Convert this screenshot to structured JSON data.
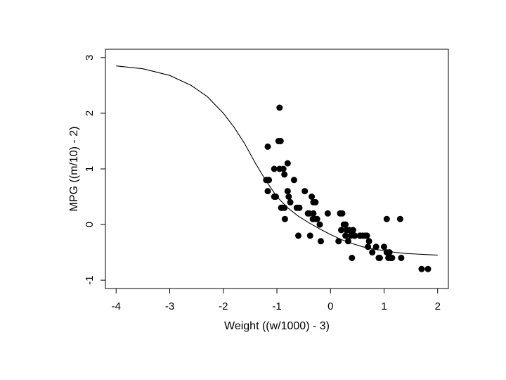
{
  "chart_data": {
    "type": "scatter",
    "title": "",
    "xlabel": "Weight ((w/1000) - 3)",
    "ylabel": "MPG ((m/10) - 2)",
    "xlim": [
      -4.2,
      2.2
    ],
    "ylim": [
      -1.15,
      3.15
    ],
    "xticks": [
      -4,
      -3,
      -2,
      -1,
      0,
      1,
      2
    ],
    "yticks": [
      -1,
      0,
      1,
      2,
      3
    ],
    "xtick_labels": [
      "-4",
      "-3",
      "-2",
      "-1",
      "0",
      "1",
      "2"
    ],
    "ytick_labels": [
      "-1",
      "0",
      "1",
      "2",
      "3"
    ],
    "grid": false,
    "legend": "none",
    "series": [
      {
        "kind": "points",
        "color": "#000000",
        "x": [
          -0.95,
          -0.97,
          -0.93,
          -1.17,
          -1.2,
          -1.17,
          -1.05,
          -0.95,
          -0.88,
          -0.86,
          -0.8,
          -1.15,
          -1.05,
          -1.02,
          -0.8,
          -0.78,
          -0.75,
          -0.9,
          -0.92,
          -0.86,
          -0.85,
          -0.68,
          -0.63,
          -0.6,
          -0.48,
          -0.42,
          -0.35,
          -0.32,
          -0.28,
          -0.25,
          -0.4,
          -0.33,
          -0.38,
          -0.28,
          -0.2,
          -0.32,
          -0.18,
          -0.58,
          -0.05,
          0.18,
          0.22,
          0.25,
          0.28,
          0.3,
          0.35,
          0.38,
          0.42,
          0.45,
          0.2,
          0.28,
          0.33,
          0.42,
          0.4,
          0.55,
          0.6,
          0.65,
          0.7,
          0.68,
          0.72,
          0.78,
          0.85,
          0.9,
          0.92,
          1.0,
          1.05,
          1.1,
          1.12,
          1.08,
          1.15,
          1.05,
          1.3,
          1.32,
          1.7,
          1.82,
          0.15,
          0.55,
          0.45
        ],
        "y": [
          2.1,
          1.5,
          1.5,
          1.4,
          0.8,
          0.6,
          1.0,
          1.0,
          1.0,
          0.9,
          1.1,
          0.8,
          0.5,
          0.5,
          0.6,
          0.5,
          0.4,
          0.3,
          0.3,
          0.3,
          0.1,
          0.8,
          0.3,
          -0.2,
          0.6,
          0.2,
          0.5,
          0.4,
          0.4,
          0.1,
          0.2,
          0.1,
          -0.2,
          0.1,
          0.0,
          0.2,
          -0.3,
          0.3,
          0.2,
          0.2,
          0.2,
          0.0,
          0.0,
          -0.1,
          -0.1,
          -0.2,
          -0.1,
          -0.2,
          -0.1,
          -0.2,
          -0.3,
          -0.1,
          -0.6,
          -0.2,
          -0.2,
          -0.2,
          -0.4,
          -0.2,
          -0.3,
          -0.5,
          -0.4,
          -0.6,
          -0.6,
          -0.4,
          -0.5,
          -0.5,
          -0.6,
          -0.6,
          -0.6,
          0.1,
          0.1,
          -0.6,
          -0.8,
          -0.8,
          -0.3,
          -0.2,
          -0.2
        ]
      },
      {
        "kind": "line",
        "color": "#000000",
        "x": [
          -4.0,
          -3.5,
          -3.0,
          -2.6,
          -2.3,
          -2.0,
          -1.8,
          -1.6,
          -1.4,
          -1.2,
          -1.0,
          -0.8,
          -0.6,
          -0.4,
          -0.2,
          0.0,
          0.2,
          0.4,
          0.6,
          0.8,
          1.0,
          1.2,
          1.4,
          1.6,
          1.8,
          2.0
        ],
        "y": [
          2.85,
          2.8,
          2.68,
          2.5,
          2.3,
          2.0,
          1.75,
          1.45,
          1.1,
          0.78,
          0.5,
          0.3,
          0.15,
          0.03,
          -0.08,
          -0.18,
          -0.27,
          -0.34,
          -0.4,
          -0.44,
          -0.47,
          -0.5,
          -0.52,
          -0.53,
          -0.54,
          -0.55
        ]
      }
    ]
  }
}
